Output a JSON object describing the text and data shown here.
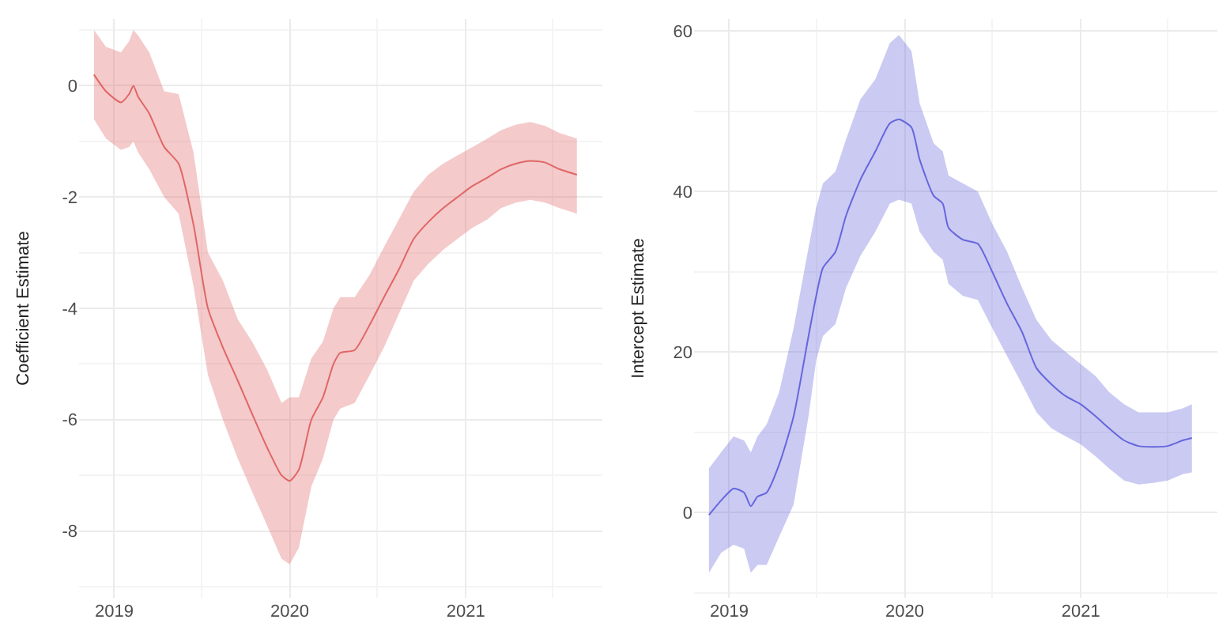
{
  "chart_data": [
    {
      "type": "line",
      "ylabel": "Coefficient Estimate",
      "grid": true,
      "x": [
        "2018-11-20",
        "2018-12-15",
        "2019-01-15",
        "2019-02-01",
        "2019-02-10",
        "2019-02-20",
        "2019-03-15",
        "2019-04-15",
        "2019-05-15",
        "2019-06-15",
        "2019-07-15",
        "2019-08-15",
        "2019-09-15",
        "2019-10-15",
        "2019-11-15",
        "2019-12-15",
        "2020-01-01",
        "2020-01-20",
        "2020-02-15",
        "2020-03-10",
        "2020-04-01",
        "2020-04-15",
        "2020-05-15",
        "2020-06-15",
        "2020-07-15",
        "2020-08-15",
        "2020-09-15",
        "2020-10-15",
        "2020-11-15",
        "2020-12-15",
        "2021-01-15",
        "2021-02-15",
        "2021-03-15",
        "2021-04-15",
        "2021-05-15",
        "2021-06-15",
        "2021-07-15",
        "2021-08-20"
      ],
      "series": [
        {
          "color": "#e06666",
          "values": [
            0.2,
            -0.1,
            -0.3,
            -0.15,
            0.0,
            -0.2,
            -0.5,
            -1.1,
            -1.4,
            -2.5,
            -4.0,
            -4.7,
            -5.3,
            -5.9,
            -6.5,
            -7.0,
            -7.1,
            -6.9,
            -6.0,
            -5.6,
            -5.0,
            -4.8,
            -4.75,
            -4.3,
            -3.8,
            -3.3,
            -2.75,
            -2.45,
            -2.2,
            -2.0,
            -1.8,
            -1.65,
            -1.5,
            -1.4,
            -1.35,
            -1.38,
            -1.5,
            -1.6
          ],
          "lower": [
            -0.6,
            -0.95,
            -1.15,
            -1.1,
            -1.0,
            -1.2,
            -1.5,
            -2.0,
            -2.3,
            -3.6,
            -5.2,
            -6.0,
            -6.7,
            -7.3,
            -7.9,
            -8.5,
            -8.6,
            -8.3,
            -7.2,
            -6.7,
            -6.0,
            -5.8,
            -5.7,
            -5.2,
            -4.7,
            -4.1,
            -3.5,
            -3.2,
            -2.95,
            -2.75,
            -2.55,
            -2.4,
            -2.2,
            -2.1,
            -2.05,
            -2.1,
            -2.2,
            -2.3
          ],
          "upper": [
            1.0,
            0.7,
            0.6,
            0.8,
            1.0,
            0.9,
            0.6,
            -0.1,
            -0.15,
            -1.2,
            -3.0,
            -3.5,
            -4.2,
            -4.6,
            -5.1,
            -5.7,
            -5.6,
            -5.6,
            -4.9,
            -4.6,
            -4.0,
            -3.8,
            -3.8,
            -3.4,
            -2.9,
            -2.4,
            -1.9,
            -1.6,
            -1.4,
            -1.25,
            -1.1,
            -0.95,
            -0.8,
            -0.7,
            -0.65,
            -0.72,
            -0.85,
            -0.95
          ]
        }
      ],
      "xlim": [
        "2018-10-20",
        "2021-10-12"
      ],
      "xticks": [
        {
          "value": "2019-01-01",
          "label": "2019"
        },
        {
          "value": "2020-01-01",
          "label": "2020"
        },
        {
          "value": "2021-01-01",
          "label": "2021"
        }
      ],
      "ylim": [
        -9.2,
        1.2
      ],
      "yticks": [
        -8,
        -6,
        -4,
        -2,
        0
      ]
    },
    {
      "type": "line",
      "ylabel": "Intercept Estimate",
      "grid": true,
      "x": [
        "2018-11-20",
        "2018-12-15",
        "2019-01-10",
        "2019-02-01",
        "2019-02-15",
        "2019-03-01",
        "2019-03-20",
        "2019-04-15",
        "2019-05-15",
        "2019-06-15",
        "2019-07-01",
        "2019-07-15",
        "2019-08-10",
        "2019-09-01",
        "2019-10-01",
        "2019-11-01",
        "2019-12-01",
        "2019-12-20",
        "2020-01-15",
        "2020-02-01",
        "2020-03-01",
        "2020-03-20",
        "2020-04-01",
        "2020-05-01",
        "2020-06-01",
        "2020-07-01",
        "2020-08-01",
        "2020-09-01",
        "2020-10-01",
        "2020-11-01",
        "2020-12-01",
        "2021-01-01",
        "2021-02-01",
        "2021-03-01",
        "2021-04-01",
        "2021-05-01",
        "2021-06-01",
        "2021-07-01",
        "2021-08-01",
        "2021-08-20"
      ],
      "series": [
        {
          "color": "#6666dd",
          "values": [
            -0.3,
            1.5,
            3.0,
            2.5,
            0.8,
            2,
            2.5,
            6,
            12,
            22,
            27,
            30.5,
            32.5,
            37,
            41.5,
            45,
            48.5,
            49,
            48,
            44,
            39.5,
            38.5,
            35.5,
            34,
            33.5,
            30,
            26,
            22.5,
            18,
            16,
            14.5,
            13.5,
            12,
            10.5,
            9,
            8.3,
            8.2,
            8.3,
            9,
            9.3
          ],
          "lower": [
            -7.5,
            -5,
            -4,
            -4.5,
            -7.5,
            -6.5,
            -6.5,
            -3,
            1,
            12,
            19,
            22,
            23.5,
            28,
            32,
            35,
            38.5,
            39,
            38.5,
            35,
            32.5,
            31.5,
            28.5,
            27,
            26.5,
            23,
            19.5,
            16,
            12.5,
            10.5,
            9.5,
            8.5,
            7,
            5.5,
            4,
            3.5,
            3.7,
            4,
            4.8,
            5
          ],
          "upper": [
            5.5,
            7.5,
            9.5,
            9,
            7.5,
            9.5,
            11,
            15,
            23,
            33,
            38,
            41,
            42.5,
            46.5,
            51.5,
            54,
            58.5,
            59.5,
            57.5,
            51,
            46,
            45,
            42,
            41,
            40,
            36,
            32.5,
            28,
            24,
            21.5,
            20,
            18.5,
            17,
            15,
            13.5,
            12.5,
            12.5,
            12.5,
            13,
            13.5
          ]
        }
      ],
      "xlim": [
        "2018-10-20",
        "2021-10-12"
      ],
      "xticks": [
        {
          "value": "2019-01-01",
          "label": "2019"
        },
        {
          "value": "2020-01-01",
          "label": "2020"
        },
        {
          "value": "2021-01-01",
          "label": "2021"
        }
      ],
      "ylim": [
        -10.6,
        61.5
      ],
      "yticks": [
        0,
        20,
        40,
        60
      ]
    }
  ]
}
